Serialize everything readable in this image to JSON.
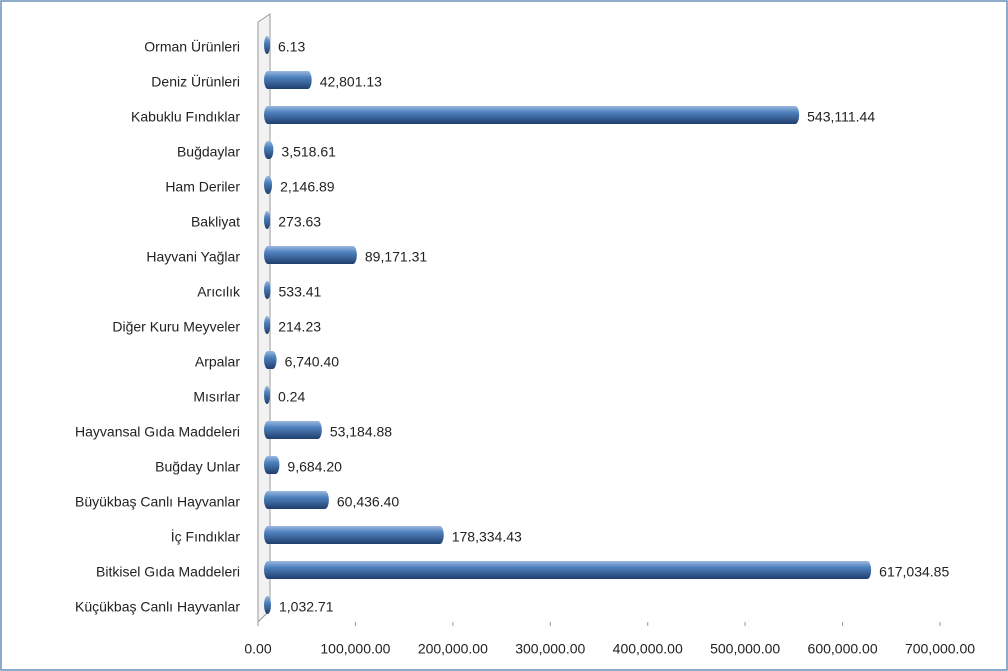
{
  "chart_data": {
    "type": "bar",
    "orientation": "horizontal",
    "color": "#4f81bd",
    "categories": [
      "Orman Ürünleri",
      "Deniz Ürünleri",
      "Kabuklu Fındıklar",
      "Buğdaylar",
      "Ham Deriler",
      "Bakliyat",
      "Hayvani Yağlar",
      "Arıcılık",
      "Diğer Kuru Meyveler",
      "Arpalar",
      "Mısırlar",
      "Hayvansal Gıda Maddeleri",
      "Buğday Unlar",
      "Büyükbaş Canlı Hayvanlar",
      "İç Fındıklar",
      "Bitkisel Gıda Maddeleri",
      "Küçükbaş Canlı Hayvanlar"
    ],
    "values": [
      6.13,
      42801.13,
      543111.44,
      3518.61,
      2146.89,
      273.63,
      89171.31,
      533.41,
      214.23,
      6740.4,
      0.24,
      53184.88,
      9684.2,
      60436.4,
      178334.43,
      617034.85,
      1032.71
    ],
    "value_labels": [
      "6.13",
      "42,801.13",
      "543,111.44",
      "3,518.61",
      "2,146.89",
      "273.63",
      "89,171.31",
      "533.41",
      "214.23",
      "6,740.40",
      "0.24",
      "53,184.88",
      "9,684.20",
      "60,436.40",
      "178,334.43",
      "617,034.85",
      "1,032.71"
    ],
    "xlim": [
      0,
      700000
    ],
    "xticks": [
      {
        "value": 0,
        "label": "0.00"
      },
      {
        "value": 100000,
        "label": "100,000.00"
      },
      {
        "value": 200000,
        "label": "200,000.00"
      },
      {
        "value": 300000,
        "label": "300,000.00"
      },
      {
        "value": 400000,
        "label": "400,000.00"
      },
      {
        "value": 500000,
        "label": "500,000.00"
      },
      {
        "value": 600000,
        "label": "600,000.00"
      },
      {
        "value": 700000,
        "label": "700,000.00"
      }
    ]
  }
}
